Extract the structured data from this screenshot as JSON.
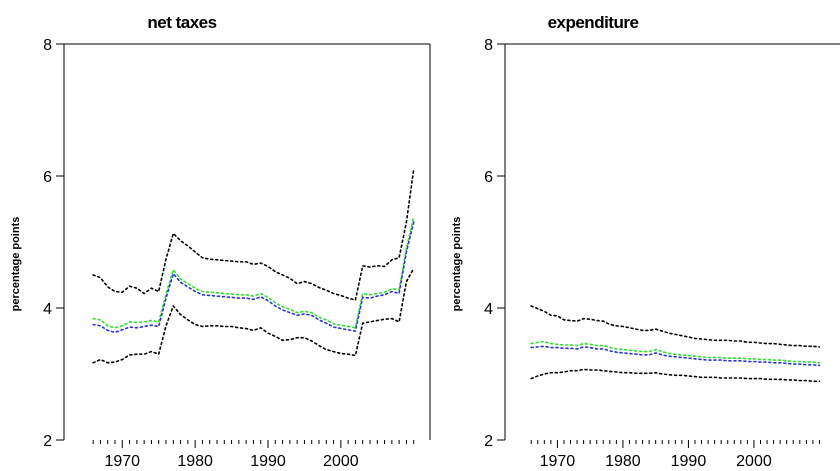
{
  "chart_data": [
    {
      "type": "line",
      "title": "net taxes",
      "xlabel": "",
      "ylabel": "percentage points",
      "xlim": [
        1962,
        2011
      ],
      "ylim": [
        2,
        8
      ],
      "xticks": [
        1970,
        1980,
        1990,
        2000
      ],
      "yticks": [
        2,
        4,
        6,
        8
      ],
      "x": [
        1966,
        1967,
        1968,
        1969,
        1970,
        1971,
        1972,
        1973,
        1974,
        1975,
        1976,
        1977,
        1978,
        1979,
        1980,
        1981,
        1982,
        1983,
        1984,
        1985,
        1986,
        1987,
        1988,
        1989,
        1990,
        1991,
        1992,
        1993,
        1994,
        1995,
        1996,
        1997,
        1998,
        1999,
        2000,
        2001,
        2002,
        2003,
        2004,
        2005,
        2006,
        2007,
        2008,
        2009,
        2010
      ],
      "series": [
        {
          "color": "#000000",
          "values": [
            4.5,
            4.46,
            4.32,
            4.25,
            4.24,
            4.33,
            4.3,
            4.22,
            4.3,
            4.25,
            4.74,
            5.13,
            5.02,
            4.94,
            4.85,
            4.76,
            4.74,
            4.73,
            4.72,
            4.71,
            4.7,
            4.7,
            4.66,
            4.68,
            4.63,
            4.55,
            4.5,
            4.45,
            4.37,
            4.4,
            4.37,
            4.31,
            4.27,
            4.22,
            4.19,
            4.15,
            4.12,
            4.64,
            4.62,
            4.64,
            4.63,
            4.73,
            4.76,
            5.3,
            6.1
          ]
        },
        {
          "color": "#33dd33",
          "values": [
            3.84,
            3.82,
            3.73,
            3.7,
            3.73,
            3.79,
            3.78,
            3.79,
            3.81,
            3.79,
            4.21,
            4.58,
            4.44,
            4.37,
            4.3,
            4.25,
            4.24,
            4.23,
            4.22,
            4.21,
            4.2,
            4.2,
            4.18,
            4.22,
            4.16,
            4.08,
            4.02,
            3.98,
            3.93,
            3.95,
            3.93,
            3.86,
            3.82,
            3.76,
            3.74,
            3.72,
            3.7,
            4.22,
            4.2,
            4.22,
            4.24,
            4.29,
            4.28,
            4.9,
            5.38
          ]
        },
        {
          "color": "#2a35c9",
          "values": [
            3.75,
            3.73,
            3.66,
            3.63,
            3.67,
            3.71,
            3.7,
            3.72,
            3.74,
            3.72,
            4.15,
            4.52,
            4.39,
            4.32,
            4.25,
            4.2,
            4.19,
            4.18,
            4.17,
            4.16,
            4.15,
            4.15,
            4.13,
            4.17,
            4.11,
            4.03,
            3.97,
            3.93,
            3.89,
            3.91,
            3.89,
            3.82,
            3.77,
            3.71,
            3.69,
            3.67,
            3.65,
            4.16,
            4.15,
            4.18,
            4.2,
            4.25,
            4.22,
            4.85,
            5.3
          ]
        },
        {
          "color": "#000000",
          "values": [
            3.17,
            3.22,
            3.17,
            3.18,
            3.22,
            3.29,
            3.3,
            3.3,
            3.34,
            3.3,
            3.73,
            4.03,
            3.9,
            3.82,
            3.75,
            3.72,
            3.73,
            3.73,
            3.72,
            3.72,
            3.7,
            3.69,
            3.66,
            3.7,
            3.62,
            3.57,
            3.51,
            3.52,
            3.55,
            3.55,
            3.5,
            3.43,
            3.37,
            3.34,
            3.31,
            3.3,
            3.28,
            3.77,
            3.79,
            3.81,
            3.83,
            3.84,
            3.79,
            4.4,
            4.6
          ]
        }
      ]
    },
    {
      "type": "line",
      "title": "expenditure",
      "xlabel": "",
      "ylabel": "percentage points",
      "xlim": [
        1962,
        2011
      ],
      "ylim": [
        2,
        8
      ],
      "xticks": [
        1970,
        1980,
        1990,
        2000
      ],
      "yticks": [
        2,
        4,
        6,
        8
      ],
      "x": [
        1966,
        1967,
        1968,
        1969,
        1970,
        1971,
        1972,
        1973,
        1974,
        1975,
        1976,
        1977,
        1978,
        1979,
        1980,
        1981,
        1982,
        1983,
        1984,
        1985,
        1986,
        1987,
        1988,
        1989,
        1990,
        1991,
        1992,
        1993,
        1994,
        1995,
        1996,
        1997,
        1998,
        1999,
        2000,
        2001,
        2002,
        2003,
        2004,
        2005,
        2006,
        2007,
        2008,
        2009,
        2010
      ],
      "series": [
        {
          "color": "#000000",
          "values": [
            4.03,
            3.99,
            3.95,
            3.89,
            3.88,
            3.82,
            3.81,
            3.8,
            3.84,
            3.83,
            3.81,
            3.8,
            3.75,
            3.73,
            3.72,
            3.7,
            3.68,
            3.66,
            3.66,
            3.68,
            3.65,
            3.62,
            3.6,
            3.58,
            3.56,
            3.54,
            3.53,
            3.52,
            3.51,
            3.51,
            3.51,
            3.5,
            3.5,
            3.48,
            3.48,
            3.47,
            3.46,
            3.46,
            3.45,
            3.44,
            3.43,
            3.43,
            3.42,
            3.42,
            3.41
          ]
        },
        {
          "color": "#33dd33",
          "values": [
            3.46,
            3.48,
            3.49,
            3.46,
            3.45,
            3.44,
            3.44,
            3.43,
            3.46,
            3.45,
            3.43,
            3.43,
            3.4,
            3.38,
            3.37,
            3.36,
            3.35,
            3.34,
            3.34,
            3.37,
            3.34,
            3.31,
            3.3,
            3.29,
            3.28,
            3.27,
            3.26,
            3.25,
            3.25,
            3.25,
            3.24,
            3.24,
            3.24,
            3.23,
            3.23,
            3.22,
            3.22,
            3.21,
            3.21,
            3.2,
            3.19,
            3.19,
            3.18,
            3.18,
            3.17
          ]
        },
        {
          "color": "#2a35c9",
          "values": [
            3.4,
            3.41,
            3.42,
            3.4,
            3.4,
            3.39,
            3.39,
            3.38,
            3.41,
            3.4,
            3.38,
            3.38,
            3.35,
            3.33,
            3.32,
            3.31,
            3.3,
            3.29,
            3.29,
            3.32,
            3.29,
            3.27,
            3.26,
            3.25,
            3.24,
            3.23,
            3.22,
            3.21,
            3.21,
            3.21,
            3.2,
            3.2,
            3.2,
            3.19,
            3.19,
            3.18,
            3.18,
            3.17,
            3.17,
            3.16,
            3.15,
            3.15,
            3.14,
            3.14,
            3.13
          ]
        },
        {
          "color": "#000000",
          "values": [
            2.93,
            2.97,
            3.0,
            3.02,
            3.02,
            3.03,
            3.05,
            3.05,
            3.07,
            3.06,
            3.06,
            3.05,
            3.04,
            3.03,
            3.02,
            3.02,
            3.01,
            3.01,
            3.01,
            3.02,
            3.0,
            2.99,
            2.98,
            2.98,
            2.97,
            2.96,
            2.95,
            2.95,
            2.95,
            2.94,
            2.94,
            2.94,
            2.94,
            2.93,
            2.93,
            2.93,
            2.92,
            2.92,
            2.92,
            2.91,
            2.91,
            2.9,
            2.9,
            2.89,
            2.89
          ]
        }
      ]
    }
  ]
}
